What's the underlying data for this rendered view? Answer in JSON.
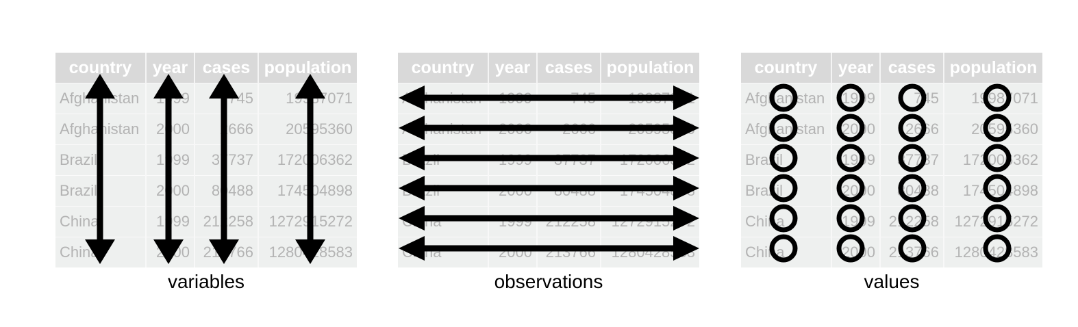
{
  "table": {
    "headers": [
      "country",
      "year",
      "cases",
      "population"
    ],
    "rows": [
      [
        "Afghanistan",
        "1999",
        "745",
        "19987071"
      ],
      [
        "Afghanistan",
        "2000",
        "2666",
        "20595360"
      ],
      [
        "Brazil",
        "1999",
        "37737",
        "172006362"
      ],
      [
        "Brazil",
        "2000",
        "80488",
        "174504898"
      ],
      [
        "China",
        "1999",
        "212258",
        "1272915272"
      ],
      [
        "China",
        "2000",
        "213766",
        "1280428583"
      ]
    ]
  },
  "panels": [
    {
      "id": "variables",
      "caption": "variables"
    },
    {
      "id": "observations",
      "caption": "observations"
    },
    {
      "id": "values",
      "caption": "values"
    }
  ],
  "colors": {
    "header_bg": "#d9d9d9",
    "header_text": "#ffffff",
    "cell_bg": "#eef0ef",
    "cell_text": "#b3b3b3",
    "marks": "#000000"
  }
}
